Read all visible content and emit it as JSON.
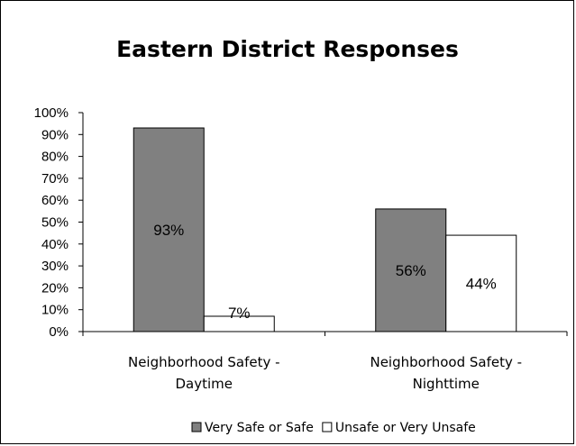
{
  "chart_data": {
    "type": "bar",
    "title": "Eastern District Responses",
    "categories": [
      [
        "Neighborhood Safety -",
        "Daytime"
      ],
      [
        "Neighborhood Safety -",
        "Nighttime"
      ]
    ],
    "series": [
      {
        "name": "Very Safe or Safe",
        "values": [
          93,
          56
        ],
        "labels": [
          "93%",
          "56%"
        ],
        "color": "#808080"
      },
      {
        "name": "Unsafe or Very Unsafe",
        "values": [
          7,
          44
        ],
        "labels": [
          "7%",
          "44%"
        ],
        "color": "#ffffff"
      }
    ],
    "yticks": [
      "0%",
      "10%",
      "20%",
      "30%",
      "40%",
      "50%",
      "60%",
      "70%",
      "80%",
      "90%",
      "100%"
    ],
    "ylim": [
      0,
      100
    ],
    "grid": false,
    "legend": "bottom"
  }
}
